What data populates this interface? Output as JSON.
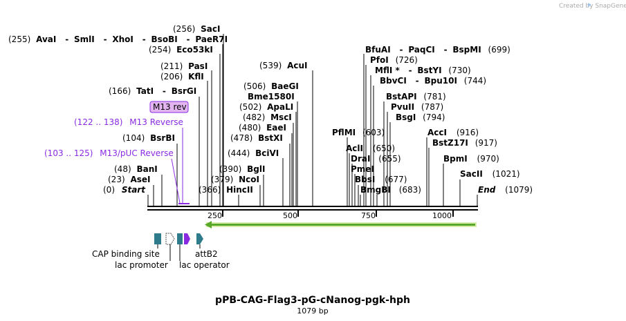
{
  "credit": "Created by SnapGene",
  "map": {
    "title": "pPB-CAG-Flag3-pG-cNanog-pgk-hph",
    "length_label": "1079 bp",
    "length": 1079
  },
  "ticks": [
    "250",
    "500",
    "750",
    "1000"
  ],
  "sites": [
    {
      "text": "(255)"
    },
    {
      "text": "AvaI"
    },
    {
      "text": "-"
    },
    {
      "text": "SmlI"
    },
    {
      "text": "-"
    },
    {
      "text": "XhoI"
    },
    {
      "text": "-"
    },
    {
      "text": "BsoBI"
    },
    {
      "text": "-"
    },
    {
      "text": "PaeR7I"
    },
    {
      "text": "(256)"
    },
    {
      "text": "SacI"
    },
    {
      "text": "(254)"
    },
    {
      "text": "Eco53kI"
    },
    {
      "text": "(211)"
    },
    {
      "text": "PasI"
    },
    {
      "text": "(206)"
    },
    {
      "text": "KflI"
    },
    {
      "text": "(166)"
    },
    {
      "text": "TatI"
    },
    {
      "text": "-"
    },
    {
      "text": "BsrGI"
    },
    {
      "text": "(104)"
    },
    {
      "text": "BsrBI"
    },
    {
      "text": "(48)"
    },
    {
      "text": "BanI"
    },
    {
      "text": "(23)"
    },
    {
      "text": "AseI"
    },
    {
      "text": "(0)"
    },
    {
      "text": "Start"
    },
    {
      "text": "(539)"
    },
    {
      "text": "AcuI"
    },
    {
      "text": "(506)"
    },
    {
      "text": "BaeGI"
    },
    {
      "text": "Bme1580I"
    },
    {
      "text": "(502)"
    },
    {
      "text": "ApaLI"
    },
    {
      "text": "(482)"
    },
    {
      "text": "MscI"
    },
    {
      "text": "(480)"
    },
    {
      "text": "EaeI"
    },
    {
      "text": "(478)"
    },
    {
      "text": "BstXI"
    },
    {
      "text": "(444)"
    },
    {
      "text": "BciVI"
    },
    {
      "text": "(390)"
    },
    {
      "text": "BglI"
    },
    {
      "text": "(379)"
    },
    {
      "text": "NcoI"
    },
    {
      "text": "(366)"
    },
    {
      "text": "HincII"
    },
    {
      "text": "BfuAI"
    },
    {
      "text": "-"
    },
    {
      "text": "PaqCI"
    },
    {
      "text": "-"
    },
    {
      "text": "BspMI"
    },
    {
      "text": "(699)"
    },
    {
      "text": "PfoI"
    },
    {
      "text": "(726)"
    },
    {
      "text": "MflI *"
    },
    {
      "text": "-"
    },
    {
      "text": "BstYI"
    },
    {
      "text": "(730)"
    },
    {
      "text": "BbvCI"
    },
    {
      "text": "-"
    },
    {
      "text": "Bpu10I"
    },
    {
      "text": "(744)"
    },
    {
      "text": "BstAPI"
    },
    {
      "text": "(781)"
    },
    {
      "text": "PvuII"
    },
    {
      "text": "(787)"
    },
    {
      "text": "BsgI"
    },
    {
      "text": "(794)"
    },
    {
      "text": "PflMI"
    },
    {
      "text": "(603)"
    },
    {
      "text": "AclI"
    },
    {
      "text": "(650)"
    },
    {
      "text": "DraI"
    },
    {
      "text": "(655)"
    },
    {
      "text": "PmeI"
    },
    {
      "text": "BbsI"
    },
    {
      "text": "(677)"
    },
    {
      "text": "BmgBI"
    },
    {
      "text": "(683)"
    },
    {
      "text": "AccI"
    },
    {
      "text": "(916)"
    },
    {
      "text": "BstZ17I"
    },
    {
      "text": "(917)"
    },
    {
      "text": "BpmI"
    },
    {
      "text": "(970)"
    },
    {
      "text": "SacII"
    },
    {
      "text": "(1021)"
    },
    {
      "text": "End"
    },
    {
      "text": "(1079)"
    }
  ],
  "primers": [
    {
      "text": "M13 rev"
    },
    {
      "text": "(122 .. 138)"
    },
    {
      "text": "M13 Reverse"
    },
    {
      "text": "(103 .. 125)"
    },
    {
      "text": "M13/pUC Reverse"
    }
  ],
  "features": [
    {
      "text": "CAP binding site"
    },
    {
      "text": "lac promoter"
    },
    {
      "text": "lac operator"
    },
    {
      "text": "attB2"
    }
  ],
  "colors": {
    "feature_teal": "#2e7b8c",
    "primer_purple": "#8a2be2",
    "primer_box": "#e2b5f0",
    "orf_green": "#5aa82a",
    "orf_highlight": "#d5eda8",
    "credit_gray": "#aaaaaa"
  }
}
